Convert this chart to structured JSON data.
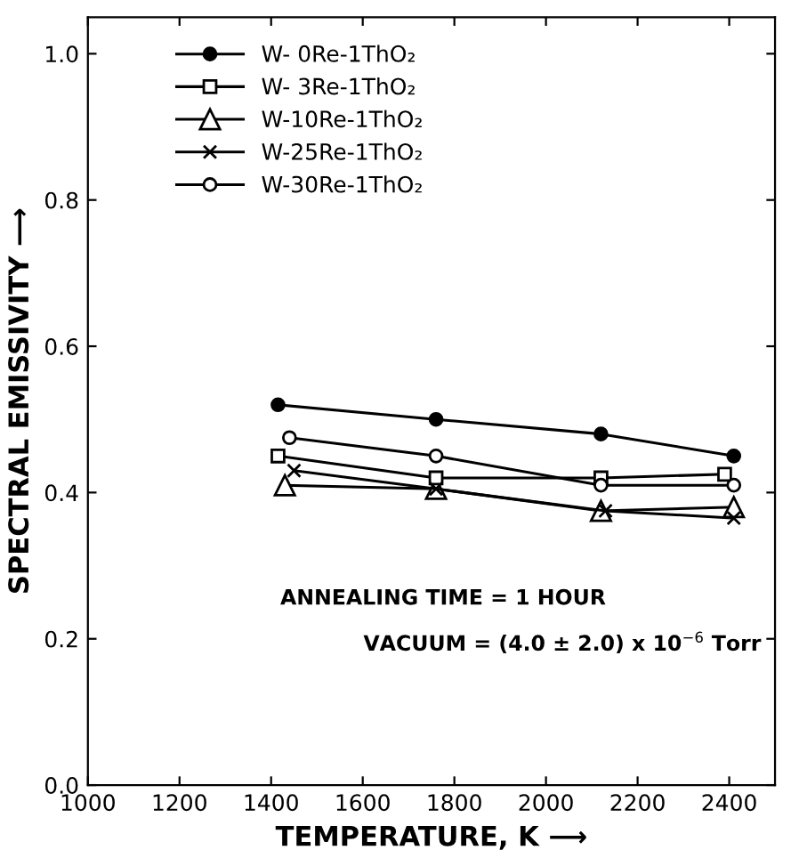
{
  "chart_data": {
    "type": "line",
    "xlabel": "TEMPERATURE, K ⟶",
    "ylabel": "SPECTRAL EMISSIVITY ⟶",
    "xlim": [
      1000,
      2500
    ],
    "ylim": [
      0.0,
      1.05
    ],
    "xticks": [
      1000,
      1200,
      1400,
      1600,
      1800,
      2000,
      2200,
      2400
    ],
    "yticks": [
      {
        "value": 0.0,
        "label": "0.0"
      },
      0.2,
      0.4,
      0.6,
      0.8,
      {
        "value": 1.0,
        "label": "1.0"
      }
    ],
    "grid": false,
    "legend": "top left",
    "line_style": "solid",
    "annotations": [
      "ANNEALING TIME = 1 HOUR",
      "VACUUM = (4.0 ± 2.0) x 10$^{−6}$ Torr"
    ],
    "series": [
      {
        "name": "W- 0Re-1ThO₂",
        "color": "#000000",
        "marker": "circle_filled",
        "x": [
          1415,
          1760,
          2120,
          2410
        ],
        "values": [
          0.52,
          0.5,
          0.48,
          0.45
        ]
      },
      {
        "name": "W- 3Re-1ThO₂",
        "color": "#000000",
        "marker": "square",
        "x": [
          1415,
          1760,
          2120,
          2390
        ],
        "values": [
          0.45,
          0.42,
          0.42,
          0.425
        ]
      },
      {
        "name": "W-10Re-1ThO₂",
        "color": "#000000",
        "marker": "triangle",
        "x": [
          1430,
          1760,
          2120,
          2410
        ],
        "values": [
          0.41,
          0.405,
          0.375,
          0.38
        ]
      },
      {
        "name": "W-25Re-1ThO₂",
        "color": "#000000",
        "marker": "cross",
        "x": [
          1450,
          1760,
          2130,
          2410
        ],
        "values": [
          0.43,
          0.405,
          0.375,
          0.365
        ]
      },
      {
        "name": "W-30Re-1ThO₂",
        "color": "#000000",
        "marker": "circle",
        "x": [
          1440,
          1760,
          2120,
          2410
        ],
        "values": [
          0.475,
          0.45,
          0.41,
          0.41
        ]
      }
    ]
  }
}
